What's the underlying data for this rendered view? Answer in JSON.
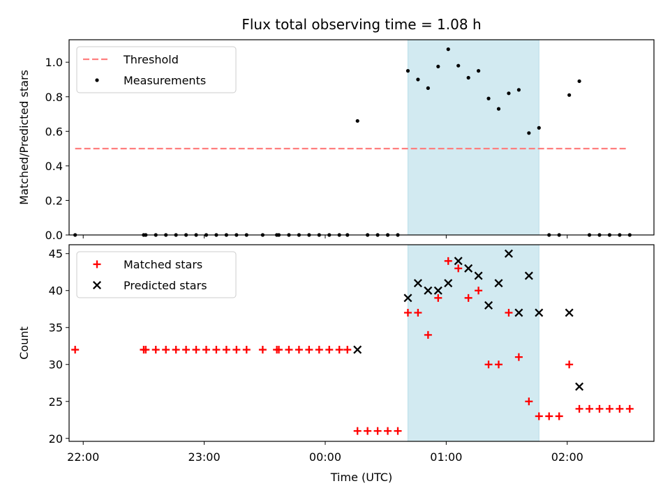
{
  "figure": {
    "title": "Flux total observing time = 1.08 h"
  },
  "chart_data": [
    {
      "type": "scatter",
      "ylabel": "Matched/Predicted stars",
      "xlabel": "",
      "xlim": [
        "21:53",
        "02:43"
      ],
      "ylim": [
        0,
        1.13
      ],
      "yticks": [
        0.0,
        0.2,
        0.4,
        0.6,
        0.8,
        1.0
      ],
      "ytick_labels": [
        "0.0",
        "0.2",
        "0.4",
        "0.6",
        "0.8",
        "1.0"
      ],
      "grid": false,
      "legend": "top-left",
      "shaded_interval": {
        "start": "00:41",
        "end": "01:46",
        "color": "#add8e6"
      },
      "threshold": {
        "name": "Threshold",
        "value": 0.5,
        "x_range": [
          "21:56",
          "02:30"
        ],
        "color": "#ff7f7f"
      },
      "series": [
        {
          "name": "Measurements",
          "marker": "dot",
          "color": "#000000",
          "points": [
            [
              "21:56",
              0
            ],
            [
              "22:30",
              0
            ],
            [
              "22:31",
              0
            ],
            [
              "22:36",
              0
            ],
            [
              "22:41",
              0
            ],
            [
              "22:46",
              0
            ],
            [
              "22:51",
              0
            ],
            [
              "22:56",
              0
            ],
            [
              "23:01",
              0
            ],
            [
              "23:06",
              0
            ],
            [
              "23:11",
              0
            ],
            [
              "23:16",
              0
            ],
            [
              "23:21",
              0
            ],
            [
              "23:29",
              0
            ],
            [
              "23:36",
              0
            ],
            [
              "23:37",
              0
            ],
            [
              "23:42",
              0
            ],
            [
              "23:47",
              0
            ],
            [
              "23:52",
              0
            ],
            [
              "23:57",
              0
            ],
            [
              "00:02",
              0
            ],
            [
              "00:07",
              0
            ],
            [
              "00:11",
              0
            ],
            [
              "00:16",
              0.66
            ],
            [
              "00:21",
              0
            ],
            [
              "00:26",
              0
            ],
            [
              "00:31",
              0
            ],
            [
              "00:36",
              0
            ],
            [
              "00:41",
              0.95
            ],
            [
              "00:46",
              0.9
            ],
            [
              "00:51",
              0.85
            ],
            [
              "00:56",
              0.975
            ],
            [
              "01:01",
              1.075
            ],
            [
              "01:06",
              0.98
            ],
            [
              "01:11",
              0.91
            ],
            [
              "01:16",
              0.95
            ],
            [
              "01:21",
              0.79
            ],
            [
              "01:26",
              0.73
            ],
            [
              "01:31",
              0.82
            ],
            [
              "01:36",
              0.84
            ],
            [
              "01:41",
              0.59
            ],
            [
              "01:46",
              0.62
            ],
            [
              "01:51",
              0
            ],
            [
              "01:56",
              0
            ],
            [
              "02:01",
              0.81
            ],
            [
              "02:06",
              0.89
            ],
            [
              "02:11",
              0
            ],
            [
              "02:16",
              0
            ],
            [
              "02:21",
              0
            ],
            [
              "02:26",
              0
            ],
            [
              "02:31",
              0
            ]
          ]
        }
      ]
    },
    {
      "type": "scatter",
      "ylabel": "Count",
      "xlabel": "Time (UTC)",
      "xlim": [
        "21:53",
        "02:43"
      ],
      "ylim": [
        19.6,
        46.2
      ],
      "yticks": [
        20,
        25,
        30,
        35,
        40,
        45
      ],
      "ytick_labels": [
        "20",
        "25",
        "30",
        "35",
        "40",
        "45"
      ],
      "xticks": [
        "22:00",
        "23:00",
        "00:00",
        "01:00",
        "02:00"
      ],
      "xtick_labels": [
        "22:00",
        "23:00",
        "00:00",
        "01:00",
        "02:00"
      ],
      "grid": false,
      "legend": "top-left",
      "shaded_interval": {
        "start": "00:41",
        "end": "01:46",
        "color": "#add8e6"
      },
      "series": [
        {
          "name": "Matched stars",
          "marker": "plus",
          "color": "#ff0000",
          "points": [
            [
              "21:56",
              32
            ],
            [
              "22:30",
              32
            ],
            [
              "22:31",
              32
            ],
            [
              "22:36",
              32
            ],
            [
              "22:41",
              32
            ],
            [
              "22:46",
              32
            ],
            [
              "22:51",
              32
            ],
            [
              "22:56",
              32
            ],
            [
              "23:01",
              32
            ],
            [
              "23:06",
              32
            ],
            [
              "23:11",
              32
            ],
            [
              "23:16",
              32
            ],
            [
              "23:21",
              32
            ],
            [
              "23:29",
              32
            ],
            [
              "23:36",
              32
            ],
            [
              "23:37",
              32
            ],
            [
              "23:42",
              32
            ],
            [
              "23:47",
              32
            ],
            [
              "23:52",
              32
            ],
            [
              "23:57",
              32
            ],
            [
              "00:02",
              32
            ],
            [
              "00:07",
              32
            ],
            [
              "00:11",
              32
            ],
            [
              "00:16",
              21
            ],
            [
              "00:21",
              21
            ],
            [
              "00:26",
              21
            ],
            [
              "00:31",
              21
            ],
            [
              "00:36",
              21
            ],
            [
              "00:41",
              37
            ],
            [
              "00:46",
              37
            ],
            [
              "00:51",
              34
            ],
            [
              "00:56",
              39
            ],
            [
              "01:01",
              44
            ],
            [
              "01:06",
              43
            ],
            [
              "01:11",
              39
            ],
            [
              "01:16",
              40
            ],
            [
              "01:21",
              30
            ],
            [
              "01:26",
              30
            ],
            [
              "01:31",
              37
            ],
            [
              "01:36",
              31
            ],
            [
              "01:41",
              25
            ],
            [
              "01:46",
              23
            ],
            [
              "01:51",
              23
            ],
            [
              "01:56",
              23
            ],
            [
              "02:01",
              30
            ],
            [
              "02:06",
              24
            ],
            [
              "02:11",
              24
            ],
            [
              "02:16",
              24
            ],
            [
              "02:21",
              24
            ],
            [
              "02:26",
              24
            ],
            [
              "02:31",
              24
            ]
          ]
        },
        {
          "name": "Predicted stars",
          "marker": "x",
          "color": "#000000",
          "points": [
            [
              "00:16",
              32
            ],
            [
              "00:41",
              39
            ],
            [
              "00:46",
              41
            ],
            [
              "00:51",
              40
            ],
            [
              "00:56",
              40
            ],
            [
              "01:01",
              41
            ],
            [
              "01:06",
              44
            ],
            [
              "01:11",
              43
            ],
            [
              "01:16",
              42
            ],
            [
              "01:21",
              38
            ],
            [
              "01:26",
              41
            ],
            [
              "01:31",
              45
            ],
            [
              "01:36",
              37
            ],
            [
              "01:41",
              42
            ],
            [
              "01:46",
              37
            ],
            [
              "02:01",
              37
            ],
            [
              "02:06",
              27
            ]
          ]
        }
      ]
    }
  ]
}
